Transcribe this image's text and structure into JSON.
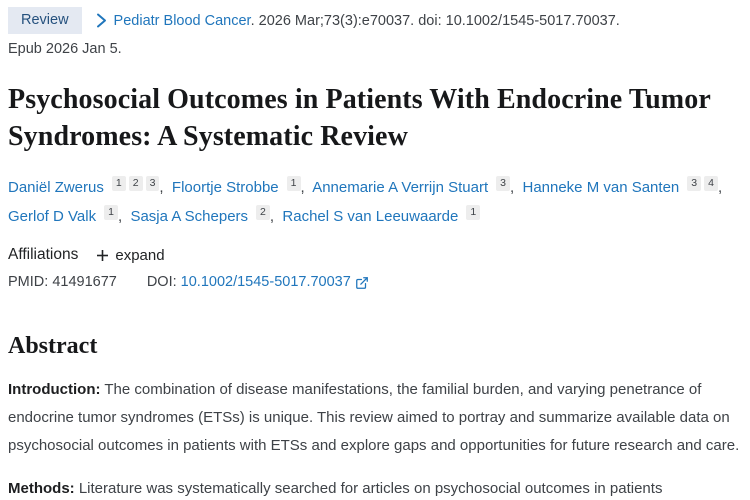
{
  "header": {
    "publication_type_badge": "Review",
    "journal_name": "Pediatr Blood Cancer",
    "citation_rest": ". 2026 Mar;73(3):e70037. doi: 10.1002/1545-5017.70037.",
    "epub_line": "Epub 2026 Jan 5."
  },
  "title": "Psychosocial Outcomes in Patients With Endocrine Tumor Syndromes: A Systematic Review",
  "authors": [
    {
      "name": "Daniël Zwerus",
      "affiliations": [
        "1",
        "2",
        "3"
      ]
    },
    {
      "name": "Floortje Strobbe",
      "affiliations": [
        "1"
      ]
    },
    {
      "name": "Annemarie A Verrijn Stuart",
      "affiliations": [
        "3"
      ]
    },
    {
      "name": "Hanneke M van Santen",
      "affiliations": [
        "3",
        "4"
      ]
    },
    {
      "name": "Gerlof D Valk",
      "affiliations": [
        "1"
      ]
    },
    {
      "name": "Sasja A Schepers",
      "affiliations": [
        "2"
      ]
    },
    {
      "name": "Rachel S van Leeuwaarde",
      "affiliations": [
        "1"
      ]
    }
  ],
  "affiliations_section": {
    "label": "Affiliations",
    "expand_label": "expand"
  },
  "identifiers": {
    "pmid_label": "PMID:",
    "pmid_value": "41491677",
    "doi_label": "DOI:",
    "doi_value": "10.1002/1545-5017.70037"
  },
  "abstract": {
    "heading": "Abstract",
    "paragraphs": [
      {
        "label": "Introduction:",
        "text": "The combination of disease manifestations, the familial burden, and varying penetrance of endocrine tumor syndromes (ETSs) is unique. This review aimed to portray and summarize available data on psychosocial outcomes in patients with ETSs and explore gaps and opportunities for future research and care."
      },
      {
        "label": "Methods:",
        "text": "Literature was systematically searched for articles on psychosocial outcomes in patients"
      }
    ]
  },
  "icons": {
    "chevron_right": "chevron-right",
    "plus": "plus",
    "external_link": "external-link"
  },
  "colors": {
    "link_blue": "#2076bc",
    "badge_background": "#e4e9f2",
    "badge_text": "#25517e",
    "title_text": "#17181a",
    "body_text": "#3e4247",
    "superscript_badge_bg": "#ededed"
  }
}
